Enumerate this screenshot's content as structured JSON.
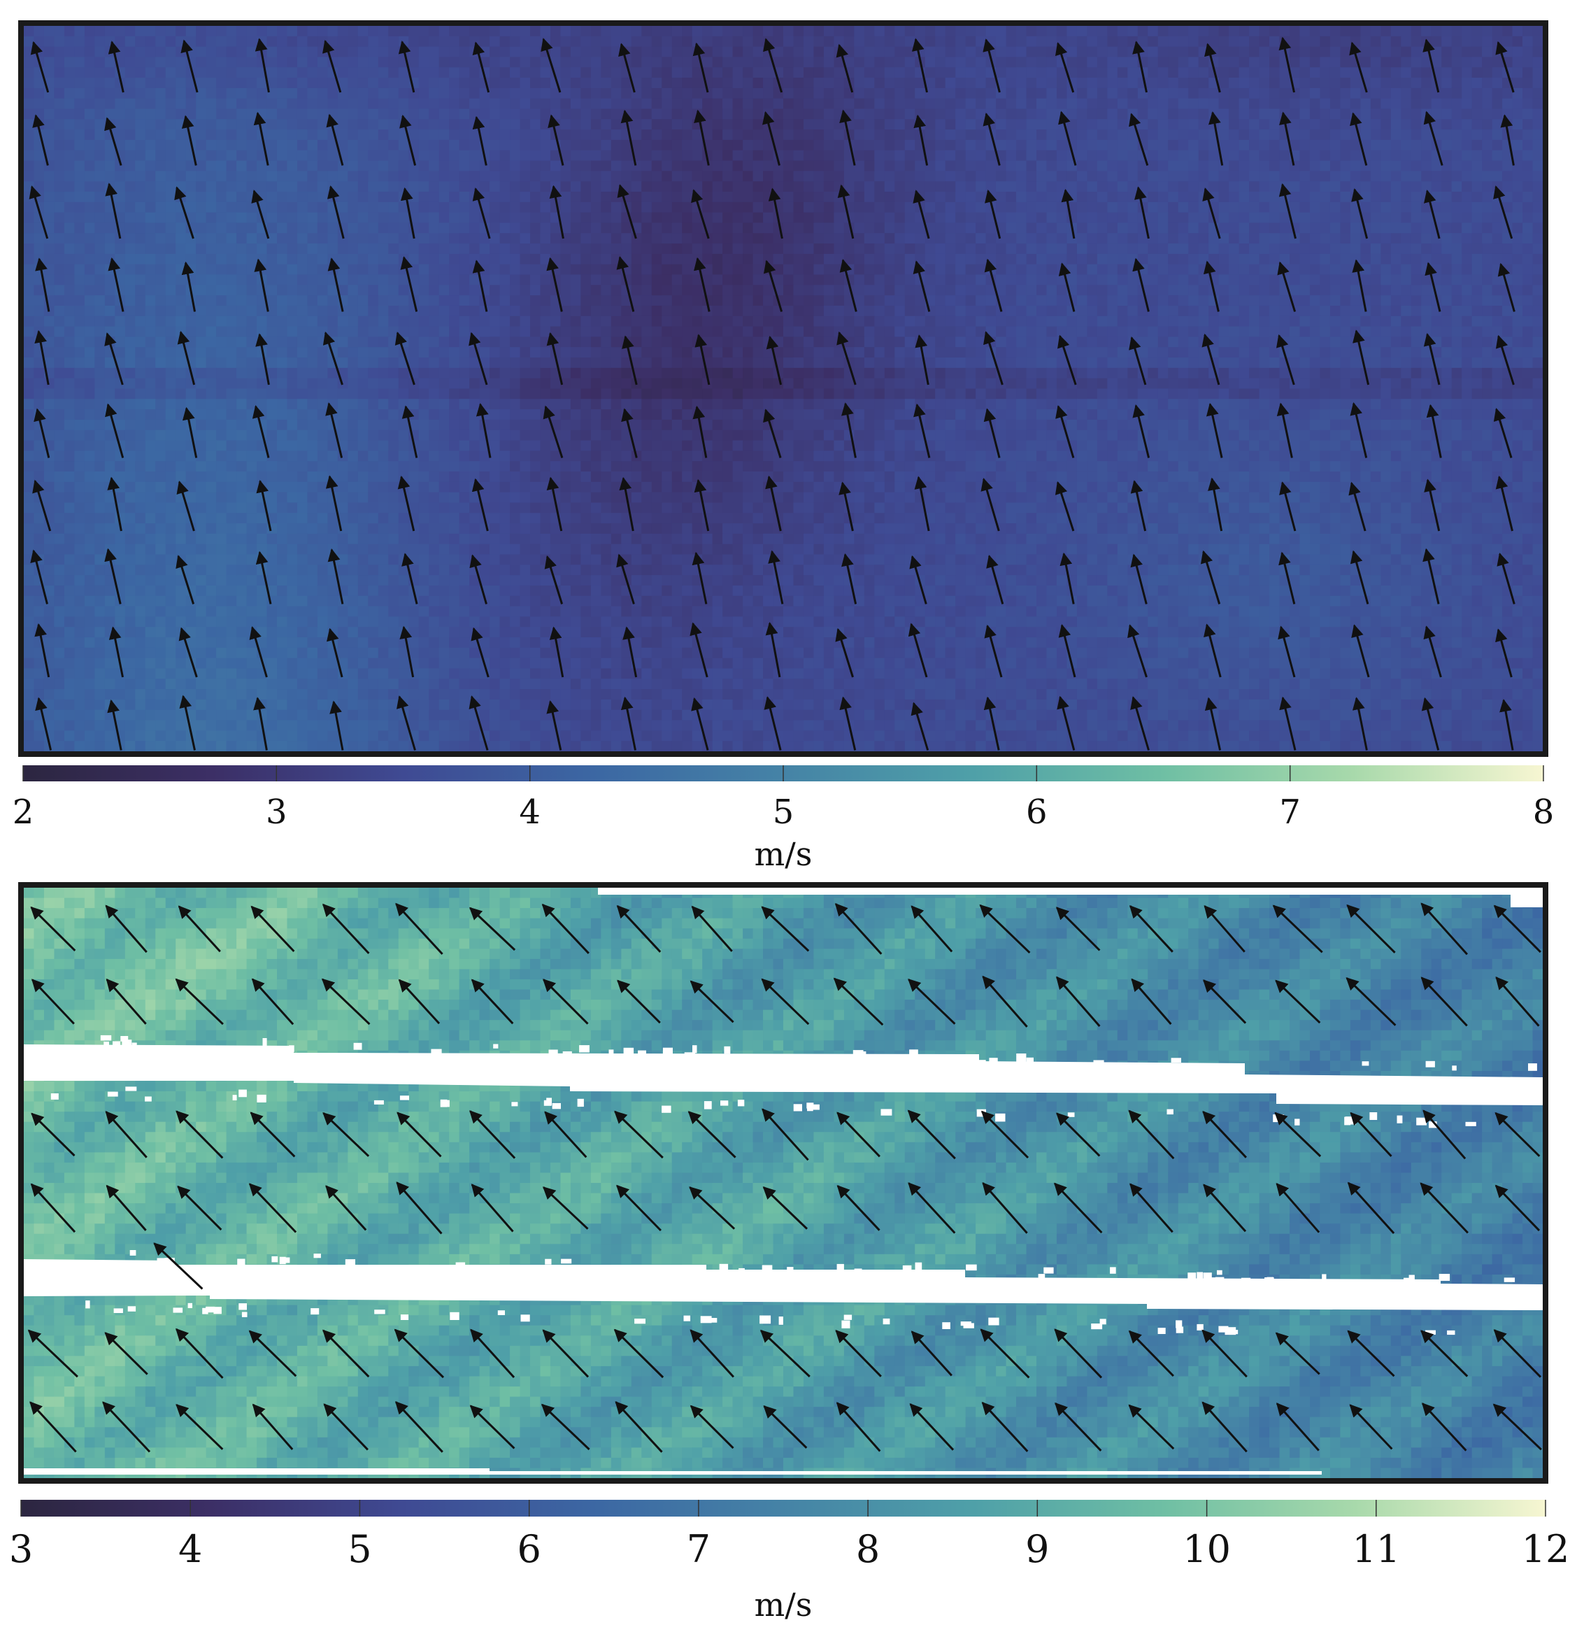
{
  "chart_data": [
    {
      "type": "heatmap",
      "subtype": "wind-speed field with direction arrows",
      "colormap": [
        "#2c2640",
        "#3c2f66",
        "#3f4a93",
        "#3c67a3",
        "#4583a6",
        "#4fa0a8",
        "#6fbfa4",
        "#a8d9ab",
        "#f7f6d2"
      ],
      "colorbar": {
        "min": 2,
        "max": 8,
        "ticks": [
          "2",
          "3",
          "4",
          "5",
          "6",
          "7",
          "8"
        ],
        "label": "m/s",
        "position": "bottom"
      },
      "field_description": "mostly 3-4 m/s; slower (~2.5-3) diagonal band in the upper center, faster (~4-4.7) at left",
      "arrows": {
        "rows": 10,
        "cols": 21,
        "direction": "toward north-northwest"
      }
    },
    {
      "type": "heatmap",
      "subtype": "wind-speed field with direction arrows",
      "colormap": [
        "#2c2640",
        "#3c2f66",
        "#3f4a93",
        "#3c67a3",
        "#4583a6",
        "#4fa0a8",
        "#6fbfa4",
        "#a8d9ab",
        "#f7f6d2"
      ],
      "colorbar": {
        "min": 3,
        "max": 12,
        "ticks": [
          "3",
          "4",
          "5",
          "6",
          "7",
          "8",
          "9",
          "10",
          "11",
          "12"
        ],
        "label": "m/s",
        "position": "bottom"
      },
      "field_description": "about 8-10 m/s, faster toward the left, slower (~7) toward the right; three data swaths separated by white no-data gaps",
      "arrows": {
        "rows": 8,
        "cols": 21,
        "direction": "toward north-west"
      }
    }
  ]
}
